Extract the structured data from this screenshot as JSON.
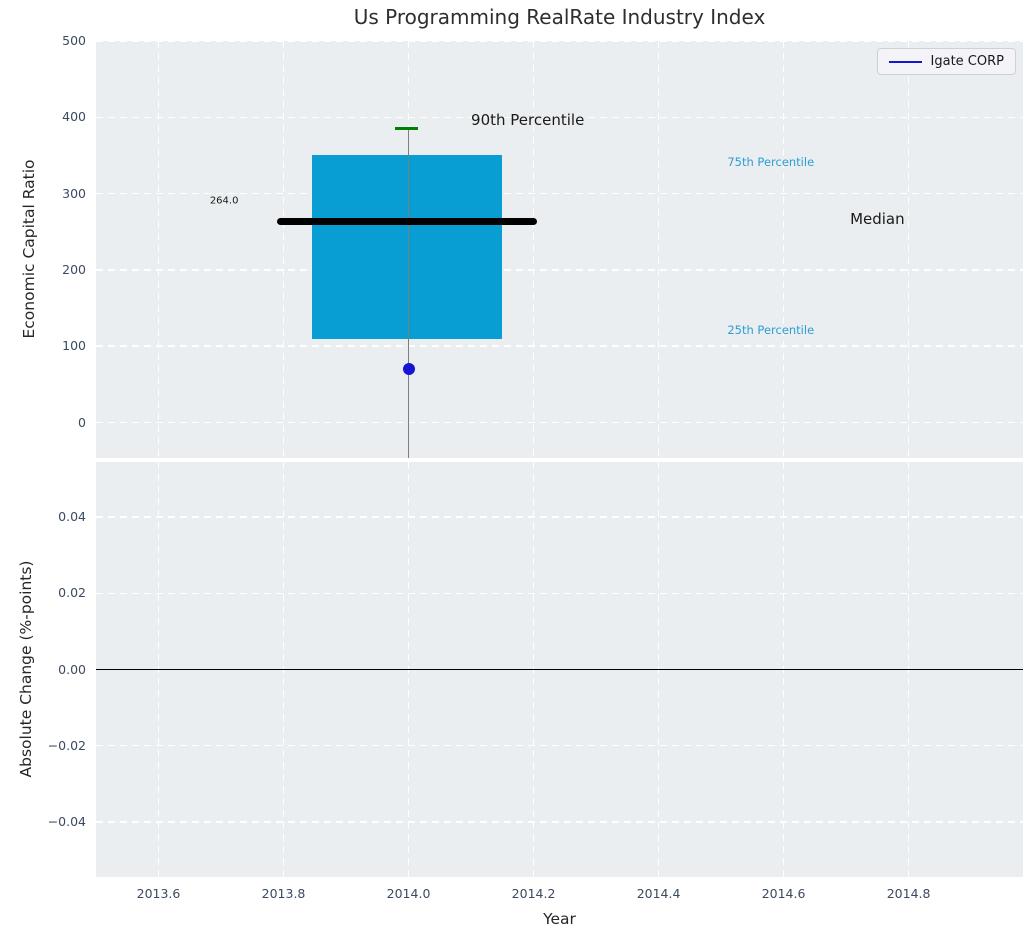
{
  "chart_data": [
    {
      "type": "boxplot",
      "title": "Us Programming RealRate Industry Index",
      "ylabel": "Economic Capital Ratio",
      "xlim": [
        2013.5,
        2014.983
      ],
      "ylim": [
        -46.5,
        500
      ],
      "grid": true,
      "xticks": [
        {
          "v": 2013.6,
          "label": "2013.6"
        },
        {
          "v": 2013.8,
          "label": "2013.8"
        },
        {
          "v": 2014.0,
          "label": "2014.0"
        },
        {
          "v": 2014.2,
          "label": "2014.2"
        },
        {
          "v": 2014.4,
          "label": "2014.4"
        },
        {
          "v": 2014.6,
          "label": "2014.6"
        },
        {
          "v": 2014.8,
          "label": "2014.8"
        }
      ],
      "yticks": [
        {
          "v": 0,
          "label": "0"
        },
        {
          "v": 100,
          "label": "100"
        },
        {
          "v": 200,
          "label": "200"
        },
        {
          "v": 300,
          "label": "300"
        },
        {
          "v": 400,
          "label": "400"
        },
        {
          "v": 500,
          "label": "500"
        }
      ],
      "legend": {
        "position": "upper right",
        "entries": [
          {
            "label": "Igate CORP",
            "color": "#1616d2"
          }
        ]
      },
      "box": {
        "center_x": 2014.0,
        "box_x_range": [
          2013.846,
          2014.15
        ],
        "median_x_range": [
          2013.79,
          2014.205
        ],
        "cap_x_range": [
          2013.978,
          2014.0145
        ],
        "q1": 110,
        "median": 264,
        "q3": 350,
        "p90": 385,
        "whisker_clipped_at_bottom": true,
        "box_color": "#089dd3",
        "median_color": "#000000",
        "cap_color": "#008000",
        "whisker_color": "#7d7d7d"
      },
      "points": [
        {
          "label": "Igate CORP",
          "x": 2014.0,
          "y": 70,
          "color": "#1616d2",
          "diameter": 12
        }
      ],
      "annotations": [
        {
          "text": "90th Percentile",
          "x": 2014.1,
          "y": 397,
          "color": "#1a1a1a",
          "size": 15,
          "ha": "left"
        },
        {
          "text": "75th Percentile",
          "x": 2014.51,
          "y": 342,
          "color": "#2b9fd4",
          "size": 11.5,
          "ha": "left"
        },
        {
          "text": "Median",
          "x": 2014.75,
          "y": 267,
          "color": "#1a1a1a",
          "size": 15,
          "ha": "center"
        },
        {
          "text": "25th Percentile",
          "x": 2014.51,
          "y": 121,
          "color": "#2b9fd4",
          "size": 11.5,
          "ha": "left"
        },
        {
          "text": "264.0",
          "x": 2013.705,
          "y": 290,
          "color": "#1a1a1a",
          "size": 10,
          "ha": "center"
        }
      ]
    },
    {
      "type": "line",
      "xlabel": "Year",
      "ylabel": "Absolute Change (%-points)",
      "xlim": [
        2013.5,
        2014.983
      ],
      "ylim": [
        -0.0545,
        0.0545
      ],
      "grid": true,
      "zero_line": 0.0,
      "zero_line_color": "#000000",
      "xticks": [
        {
          "v": 2013.6,
          "label": "2013.6"
        },
        {
          "v": 2013.8,
          "label": "2013.8"
        },
        {
          "v": 2014.0,
          "label": "2014.0"
        },
        {
          "v": 2014.2,
          "label": "2014.2"
        },
        {
          "v": 2014.4,
          "label": "2014.4"
        },
        {
          "v": 2014.6,
          "label": "2014.6"
        },
        {
          "v": 2014.8,
          "label": "2014.8"
        }
      ],
      "yticks": [
        {
          "v": -0.04,
          "label": "−0.04"
        },
        {
          "v": -0.02,
          "label": "−0.02"
        },
        {
          "v": 0.0,
          "label": "0.00"
        },
        {
          "v": 0.02,
          "label": "0.02"
        },
        {
          "v": 0.04,
          "label": "0.04"
        }
      ],
      "series": []
    }
  ]
}
